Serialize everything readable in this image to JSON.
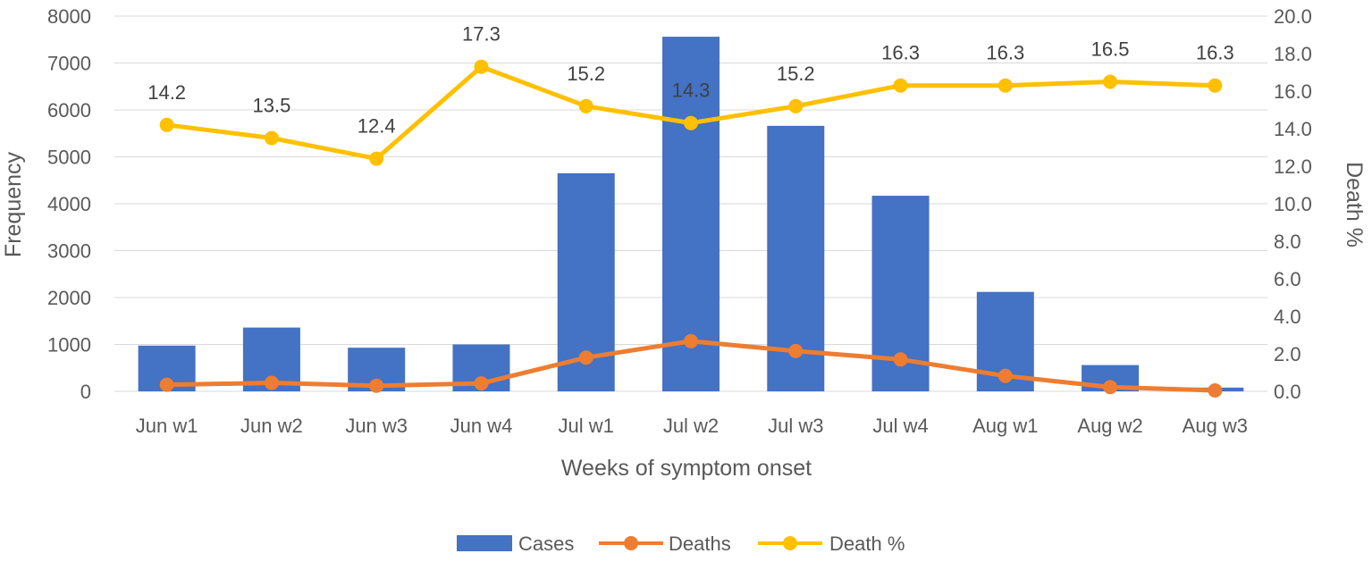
{
  "chart_data": {
    "type": "bar+line",
    "xlabel": "Weeks of symptom onset",
    "ylabel": "Frequency",
    "y2label": "Death %",
    "categories": [
      "Jun w1",
      "Jun w2",
      "Jun w3",
      "Jun w4",
      "Jul w1",
      "Jul w2",
      "Jul w3",
      "Jul w4",
      "Aug w1",
      "Aug w2",
      "Aug w3"
    ],
    "ylim": [
      0,
      8000
    ],
    "yticks": [
      "0",
      "1000",
      "2000",
      "3000",
      "4000",
      "5000",
      "6000",
      "7000",
      "8000"
    ],
    "y2lim": [
      0,
      20
    ],
    "y2ticks": [
      "0.0",
      "2.0",
      "4.0",
      "6.0",
      "8.0",
      "10.0",
      "12.0",
      "14.0",
      "16.0",
      "18.0",
      "20.0"
    ],
    "grid": true,
    "legend_position": "bottom",
    "series": [
      {
        "name": "Cases",
        "kind": "bar",
        "axis": "left",
        "color": "#4472C4",
        "values": [
          975,
          1360,
          930,
          1000,
          4650,
          7560,
          5660,
          4170,
          2120,
          560,
          80
        ]
      },
      {
        "name": "Deaths",
        "kind": "line",
        "axis": "left",
        "color": "#ED7D31",
        "values": [
          140,
          180,
          120,
          170,
          720,
          1070,
          860,
          680,
          330,
          90,
          20
        ]
      },
      {
        "name": "Death %",
        "kind": "line",
        "axis": "right",
        "color": "#FFC000",
        "values": [
          14.2,
          13.5,
          12.4,
          17.3,
          15.2,
          14.3,
          15.2,
          16.3,
          16.3,
          16.5,
          16.3
        ],
        "labels": [
          "14.2",
          "13.5",
          "12.4",
          "17.3",
          "15.2",
          "14.3",
          "15.2",
          "16.3",
          "16.3",
          "16.5",
          "16.3"
        ]
      }
    ]
  }
}
